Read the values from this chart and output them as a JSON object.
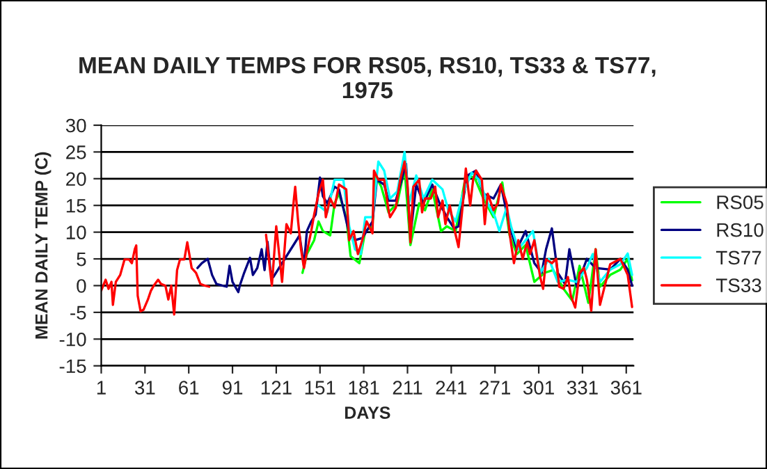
{
  "chart_data": {
    "type": "line",
    "title": "MEAN DAILY TEMPS FOR RS05, RS10, TS33 & TS77,\n1975",
    "xlabel": "DAYS",
    "ylabel": "MEAN DAILY TEMP (C)",
    "xlim": [
      1,
      366
    ],
    "xticks": [
      1,
      31,
      61,
      91,
      121,
      151,
      181,
      211,
      241,
      271,
      301,
      331,
      361
    ],
    "ylim": [
      -15,
      30
    ],
    "yticks": [
      -15,
      -10,
      -5,
      0,
      5,
      10,
      15,
      20,
      25,
      30
    ],
    "grid": "y",
    "legend": "right",
    "marker": "none",
    "line_style": "solid",
    "series": [
      {
        "name": "RS05",
        "color": "#00ff00",
        "x": [
          139,
          142,
          147,
          150,
          153,
          158,
          161,
          164,
          169,
          172,
          178,
          182,
          187,
          189,
          193,
          198,
          204,
          209,
          213,
          219,
          223,
          228,
          234,
          238,
          244,
          251,
          257,
          263,
          270,
          276,
          281,
          286,
          292,
          298,
          305,
          311,
          318,
          324,
          329,
          335,
          340,
          343,
          350,
          357,
          362,
          365
        ],
        "values": [
          2.4,
          5.9,
          8.5,
          12,
          10.2,
          9.4,
          15.4,
          17.2,
          12.8,
          5.5,
          4.2,
          10.2,
          11.1,
          20.6,
          18.5,
          13.7,
          15.4,
          21.9,
          7.6,
          15.4,
          14.1,
          18,
          10.2,
          11.1,
          10.2,
          20.6,
          20.2,
          16.3,
          12.8,
          19.3,
          9.4,
          5.9,
          7.6,
          0.7,
          2.4,
          2.9,
          -0.6,
          -2.8,
          3.7,
          -3.2,
          6.8,
          -0.2,
          2,
          3,
          5,
          1
        ]
      },
      {
        "name": "RS10",
        "color": "#000080",
        "x": [
          67,
          70,
          74,
          77,
          80,
          84,
          87,
          89,
          91,
          95,
          96,
          99,
          103,
          105,
          108,
          111,
          113,
          115,
          117,
          119,
          137,
          140,
          142,
          145,
          148,
          151,
          153,
          156,
          161,
          164,
          171,
          175,
          180,
          187,
          190,
          195,
          198,
          203,
          207,
          210,
          213,
          217,
          222,
          228,
          233,
          238,
          243,
          246,
          252,
          258,
          263,
          270,
          275,
          281,
          286,
          292,
          298,
          303,
          306,
          310,
          314,
          319,
          322,
          327,
          334,
          340,
          350,
          357,
          362,
          365
        ],
        "values": [
          3.3,
          4.2,
          5,
          2,
          0.3,
          0,
          -0.2,
          3.7,
          0.7,
          -1.2,
          0,
          2.4,
          5.2,
          2,
          3.3,
          6.8,
          2.9,
          8.2,
          2.9,
          1.6,
          9.4,
          3.7,
          10.2,
          12,
          13.3,
          20.2,
          16.7,
          15.4,
          18.5,
          18,
          9.8,
          8.5,
          8.9,
          12,
          19.8,
          18.9,
          15.9,
          15.9,
          19.8,
          22.8,
          9.4,
          18.9,
          15.4,
          18.9,
          15.4,
          12.8,
          10.7,
          11.1,
          20.6,
          21.5,
          17.2,
          16.3,
          18.9,
          11.1,
          6.8,
          10.2,
          4.2,
          2.4,
          6.8,
          10.7,
          2.4,
          0.3,
          6.8,
          -0.2,
          5,
          3.3,
          3,
          5,
          3,
          0
        ]
      },
      {
        "name": "TS77",
        "color": "#00ffff",
        "x": [
          150,
          156,
          161,
          163,
          167,
          171,
          175,
          179,
          182,
          187,
          191,
          195,
          199,
          204,
          209,
          212,
          217,
          222,
          228,
          235,
          239,
          244,
          249,
          255,
          260,
          266,
          271,
          274,
          279,
          282,
          287,
          292,
          297,
          302,
          308,
          314,
          321,
          327,
          334,
          338,
          343,
          350,
          357,
          362,
          365
        ],
        "values": [
          15,
          13.7,
          19.8,
          19.8,
          19.8,
          11.1,
          6.8,
          5.9,
          12.8,
          12.8,
          23.2,
          21.5,
          16.3,
          17.6,
          25,
          15.4,
          20.6,
          16.3,
          19.8,
          18,
          14.1,
          12,
          17.2,
          21.1,
          19.8,
          15.4,
          12.8,
          10.2,
          14.6,
          11.1,
          6.8,
          8.5,
          10.2,
          2.4,
          5,
          0.7,
          1.1,
          0.7,
          3.3,
          5.9,
          0.7,
          3,
          4,
          6,
          2
        ]
      },
      {
        "name": "TS33",
        "color": "#ff0000",
        "x": [
          1,
          4,
          6,
          8,
          9,
          11,
          14,
          17,
          20,
          22,
          24,
          25,
          26,
          28,
          30,
          33,
          35,
          37,
          40,
          42,
          45,
          47,
          49,
          51,
          53,
          55,
          58,
          60,
          63,
          66,
          69,
          72,
          75,
          95,
          114,
          118,
          121,
          125,
          128,
          131,
          133,
          134,
          136,
          138,
          140,
          142,
          145,
          147,
          150,
          153,
          155,
          158,
          161,
          164,
          169,
          171,
          174,
          177,
          180,
          183,
          187,
          188,
          191,
          195,
          198,
          199,
          203,
          206,
          209,
          211,
          213,
          215,
          219,
          221,
          223,
          227,
          230,
          232,
          235,
          237,
          240,
          243,
          246,
          249,
          251,
          254,
          256,
          258,
          262,
          264,
          266,
          270,
          273,
          275,
          279,
          281,
          284,
          287,
          290,
          293,
          295,
          298,
          302,
          304,
          306,
          310,
          313,
          315,
          318,
          321,
          323,
          326,
          329,
          332,
          334,
          337,
          340,
          343,
          350,
          357,
          362,
          365
        ],
        "values": [
          -0.9,
          1.1,
          -0.6,
          0.7,
          -3.6,
          0.7,
          2,
          4.9,
          4.9,
          4.2,
          6.8,
          7.5,
          -1.9,
          -4.8,
          -4.5,
          -2.6,
          -1,
          0,
          1.1,
          0.3,
          0,
          -2.6,
          0,
          -5.4,
          2.9,
          4.9,
          4.9,
          8.1,
          3.3,
          2.4,
          0.3,
          0,
          -0.2,
          null,
          9.5,
          0,
          11.1,
          0.7,
          11.5,
          9.8,
          15.9,
          18.5,
          12,
          6.8,
          3.3,
          6.3,
          10.2,
          13.3,
          17.2,
          19.8,
          12.8,
          16.3,
          14.6,
          18.9,
          18,
          8.5,
          10.2,
          5.9,
          8.5,
          12,
          9.8,
          21.5,
          19.8,
          19.8,
          14.1,
          12.8,
          14.6,
          19.8,
          23.2,
          18.9,
          8.1,
          18.5,
          19.8,
          13.7,
          16.3,
          16.3,
          18.5,
          12.8,
          15.9,
          11.5,
          15,
          10.7,
          7.2,
          15.4,
          21.9,
          15,
          19.8,
          21.5,
          19.8,
          11.5,
          17.2,
          14.1,
          15.4,
          18.9,
          15.4,
          9.8,
          4.2,
          8.5,
          5,
          8.1,
          5.9,
          8.5,
          1.6,
          -0.6,
          4.9,
          4.2,
          5,
          -0.2,
          -0.6,
          1.6,
          -1.9,
          -4.1,
          2.4,
          3.3,
          1.1,
          -4.7,
          6.8,
          -3.6,
          4,
          5,
          2,
          -4
        ]
      }
    ]
  }
}
